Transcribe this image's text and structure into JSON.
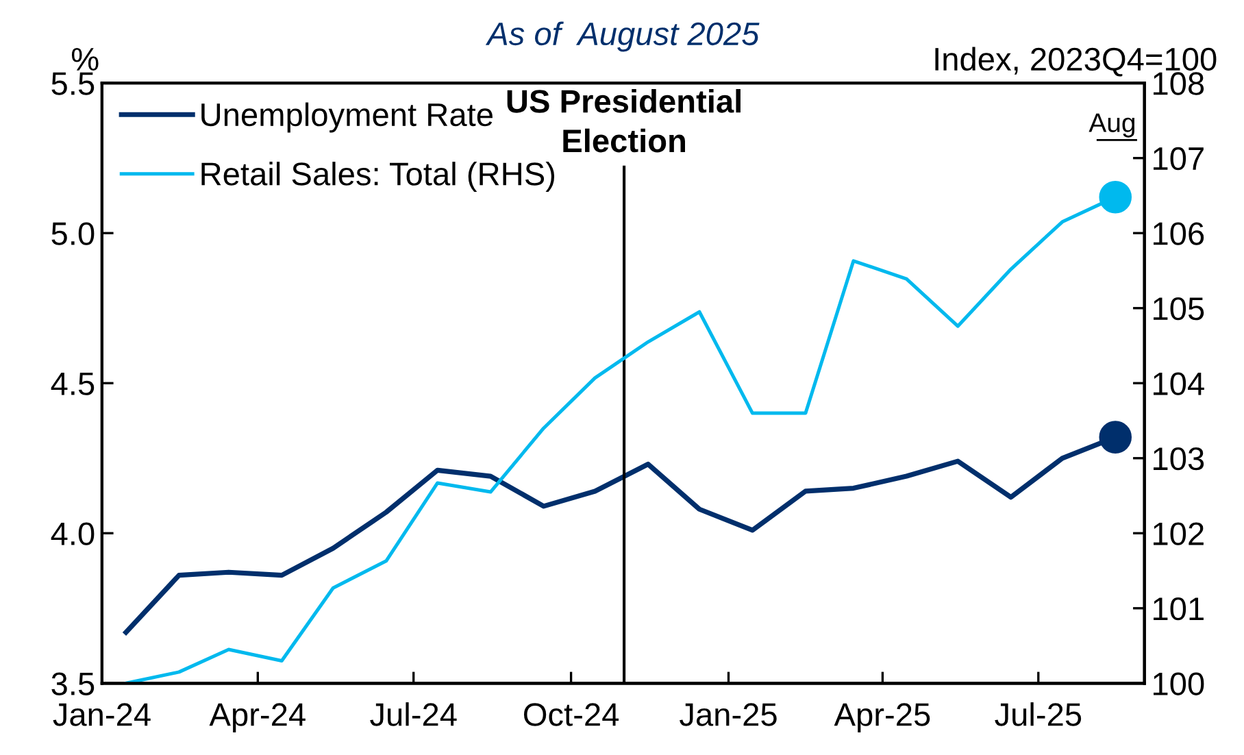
{
  "chart_data": {
    "type": "line",
    "title": "As of  August 2025",
    "ylabel": "%",
    "y2label": "Index, 2023Q4=100",
    "x": [
      "2024-01-15",
      "2024-02-15",
      "2024-03-15",
      "2024-04-15",
      "2024-05-15",
      "2024-06-15",
      "2024-07-15",
      "2024-08-15",
      "2024-09-15",
      "2024-10-15",
      "2024-11-15",
      "2024-12-15",
      "2025-01-15",
      "2025-02-15",
      "2025-03-15",
      "2025-04-15",
      "2025-05-15",
      "2025-06-15",
      "2025-07-15",
      "2025-08-15"
    ],
    "series": [
      {
        "name": "Unemployment Rate",
        "color": "#002f6c",
        "values": [
          3.67,
          3.86,
          3.87,
          3.86,
          3.95,
          4.07,
          4.21,
          4.19,
          4.09,
          4.14,
          4.23,
          4.08,
          4.01,
          4.14,
          4.15,
          4.19,
          4.24,
          4.12,
          4.25,
          4.32
        ]
      },
      {
        "name": "Retail Sales: Total (RHS)",
        "color": "#00b9ee",
        "axis": "y2",
        "values": [
          100.0,
          100.15,
          100.45,
          100.3,
          101.27,
          101.63,
          102.67,
          102.55,
          103.4,
          104.07,
          104.55,
          104.95,
          103.6,
          103.6,
          105.63,
          105.39,
          104.76,
          105.52,
          106.15,
          106.48
        ]
      },
      {
        "type": "scatter",
        "color": "#002f6c",
        "x": [
          "2025-08-15"
        ],
        "values": [
          4.32
        ]
      },
      {
        "type": "scatter",
        "color": "#00b9ee",
        "axis": "y2",
        "x": [
          "2025-08-15"
        ],
        "values": [
          106.48
        ]
      }
    ],
    "xlim": [
      "2024-01-01",
      "2025-09-01"
    ],
    "xticks": [
      {
        "value": "2024-01-01",
        "label": "Jan-24"
      },
      {
        "value": "2024-04-01",
        "label": "Apr-24"
      },
      {
        "value": "2024-07-01",
        "label": "Jul-24"
      },
      {
        "value": "2024-10-01",
        "label": "Oct-24"
      },
      {
        "value": "2025-01-01",
        "label": "Jan-25"
      },
      {
        "value": "2025-04-01",
        "label": "Apr-25"
      },
      {
        "value": "2025-07-01",
        "label": "Jul-25"
      }
    ],
    "ylim": [
      3.5,
      5.5
    ],
    "yticks": [
      {
        "value": 3.5,
        "label": "3.5"
      },
      {
        "value": 4.0,
        "label": "4.0"
      },
      {
        "value": 4.5,
        "label": "4.5"
      },
      {
        "value": 5.0,
        "label": "5.0"
      },
      {
        "value": 5.5,
        "label": "5.5"
      }
    ],
    "y2lim": [
      100,
      108
    ],
    "y2ticks": [
      100,
      101,
      102,
      103,
      104,
      105,
      106,
      107,
      108
    ],
    "ref_lines": [
      {
        "axis": "x",
        "value": "2024-11-01",
        "label": "US Presidential\nElection",
        "color": "#000000"
      }
    ],
    "annotations": [
      "Aug"
    ],
    "legend": "top left",
    "grid": false,
    "line_style": "solid"
  }
}
